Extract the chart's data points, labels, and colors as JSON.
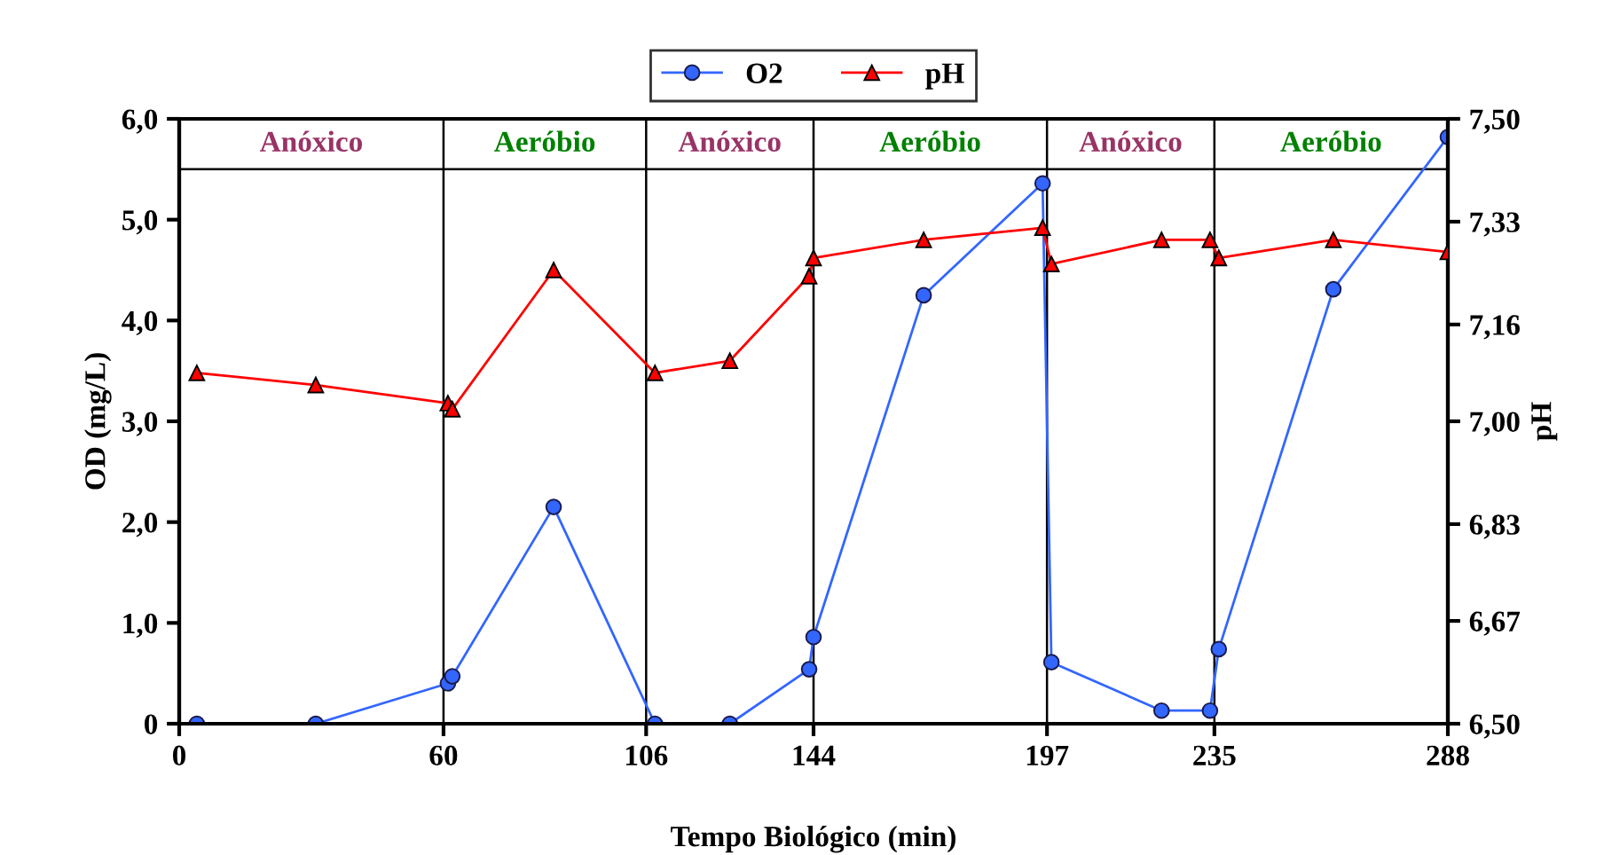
{
  "chart_data": {
    "type": "line",
    "xlabel": "Tempo Biológico (min)",
    "ylabel": "OD (mg/L)",
    "y2label": "pH",
    "xlim": [
      0,
      288
    ],
    "xticks": [
      0,
      60,
      106,
      144,
      197,
      235,
      288
    ],
    "ylim": [
      0,
      6.0
    ],
    "yticks": [
      {
        "value": 0,
        "label": "0"
      },
      {
        "value": 1,
        "label": "1,0"
      },
      {
        "value": 2,
        "label": "2,0"
      },
      {
        "value": 3,
        "label": "3,0"
      },
      {
        "value": 4,
        "label": "4,0"
      },
      {
        "value": 5,
        "label": "5,0"
      },
      {
        "value": 6,
        "label": "6,0"
      }
    ],
    "y2lim": [
      6.5,
      7.5
    ],
    "y2ticks": [
      {
        "value": 6.5,
        "label": "6,50"
      },
      {
        "value": 6.67,
        "label": "6,67"
      },
      {
        "value": 6.83,
        "label": "6,83"
      },
      {
        "value": 7.0,
        "label": "7,00"
      },
      {
        "value": 7.16,
        "label": "7,16"
      },
      {
        "value": 7.33,
        "label": "7,33"
      },
      {
        "value": 7.5,
        "label": "7,50"
      }
    ],
    "legend": "top",
    "grid": false,
    "series": [
      {
        "name": "O2",
        "color": "#3366ff",
        "marker": "circle",
        "x": [
          4,
          31,
          61,
          62,
          85,
          108,
          125,
          143,
          144,
          169,
          196,
          198,
          223,
          234,
          236,
          262,
          288
        ],
        "values": [
          0,
          0,
          0.4,
          0.47,
          2.15,
          0,
          0,
          0.54,
          0.86,
          4.25,
          5.36,
          0.61,
          0.13,
          0.13,
          0.74,
          4.31,
          5.82
        ]
      },
      {
        "name": "pH",
        "color": "#ff0000",
        "marker": "triangle",
        "axis": "y2",
        "x": [
          4,
          31,
          61,
          62,
          85,
          108,
          125,
          143,
          144,
          169,
          196,
          198,
          223,
          234,
          236,
          262,
          288
        ],
        "values": [
          7.08,
          7.06,
          7.03,
          7.02,
          7.25,
          7.08,
          7.1,
          7.24,
          7.27,
          7.3,
          7.32,
          7.26,
          7.3,
          7.3,
          7.27,
          7.3,
          7.28
        ]
      }
    ],
    "ref_lines": [
      {
        "axis": "x",
        "value": 60,
        "color": "#000000"
      },
      {
        "axis": "x",
        "value": 106,
        "color": "#000000"
      },
      {
        "axis": "x",
        "value": 144,
        "color": "#000000"
      },
      {
        "axis": "x",
        "value": 197,
        "color": "#000000"
      },
      {
        "axis": "x",
        "value": 235,
        "color": "#000000"
      },
      {
        "axis": "y",
        "value": 5.5,
        "color": "#000000"
      }
    ],
    "annotations": [
      "Anóxico",
      "Aeróbio",
      "Anóxico",
      "Aeróbio",
      "Anóxico",
      "Aeróbio"
    ]
  }
}
